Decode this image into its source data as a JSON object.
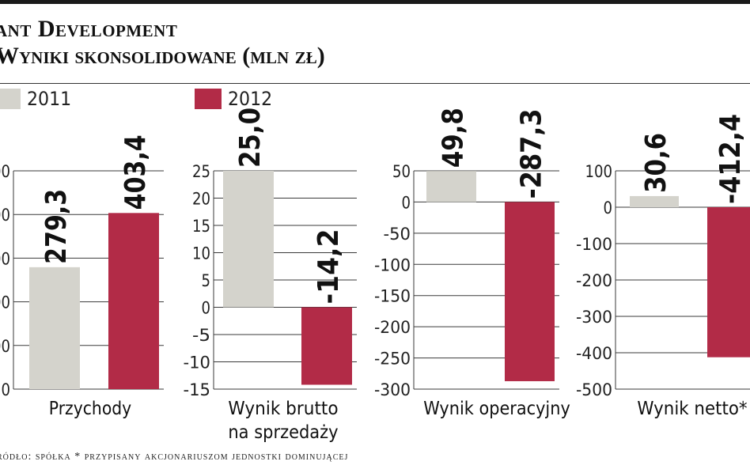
{
  "title": "ant Development",
  "subtitle": "Wyniki skonsolidowane (mln zł)",
  "legend": [
    {
      "label": "2011",
      "color": "#d4d3cc"
    },
    {
      "label": "2012",
      "color": "#b22b47"
    }
  ],
  "footer": "ródło: spółka * przypisany akcjonariuszom jednostki dominującej",
  "chart_data": [
    {
      "type": "bar",
      "categories": [
        "2011",
        "2012"
      ],
      "values": [
        279.3,
        403.4
      ],
      "value_labels": [
        "279,3",
        "403,4"
      ],
      "xlabel": "Przychody",
      "ylim": [
        0,
        500
      ],
      "yticks": [
        0,
        100,
        200,
        300,
        400,
        500
      ],
      "ytick_labels": [
        "0",
        "00",
        "00",
        "00",
        "00",
        "00"
      ],
      "grid": true
    },
    {
      "type": "bar",
      "categories": [
        "2011",
        "2012"
      ],
      "values": [
        25.0,
        -14.2
      ],
      "value_labels": [
        "25,0",
        "-14,2"
      ],
      "xlabel": "Wynik brutto na sprzedaży",
      "ylim": [
        -15,
        25
      ],
      "yticks": [
        25,
        20,
        15,
        10,
        5,
        0,
        -5,
        -10,
        -15
      ],
      "ytick_labels": [
        "25",
        "20",
        "15",
        "10",
        "5",
        "0",
        "-5",
        "-10",
        "-15"
      ],
      "grid": true
    },
    {
      "type": "bar",
      "categories": [
        "2011",
        "2012"
      ],
      "values": [
        49.8,
        -287.3
      ],
      "value_labels": [
        "49,8",
        "-287,3"
      ],
      "xlabel": "Wynik operacyjny",
      "ylim": [
        -300,
        50
      ],
      "yticks": [
        50,
        0,
        -50,
        -100,
        -150,
        -200,
        -250,
        -300
      ],
      "ytick_labels": [
        "50",
        "0",
        "-50",
        "-100",
        "-150",
        "-200",
        "-250",
        "-300"
      ],
      "grid": true
    },
    {
      "type": "bar",
      "categories": [
        "2011",
        "2012"
      ],
      "values": [
        30.6,
        -412.4
      ],
      "value_labels": [
        "30,6",
        "-412,4"
      ],
      "xlabel": "Wynik netto*",
      "ylim": [
        -500,
        100
      ],
      "yticks": [
        100,
        0,
        -100,
        -200,
        -300,
        -400,
        -500
      ],
      "ytick_labels": [
        "100",
        "0",
        "-100",
        "-200",
        "-300",
        "-400",
        "-500"
      ],
      "grid": true
    }
  ]
}
